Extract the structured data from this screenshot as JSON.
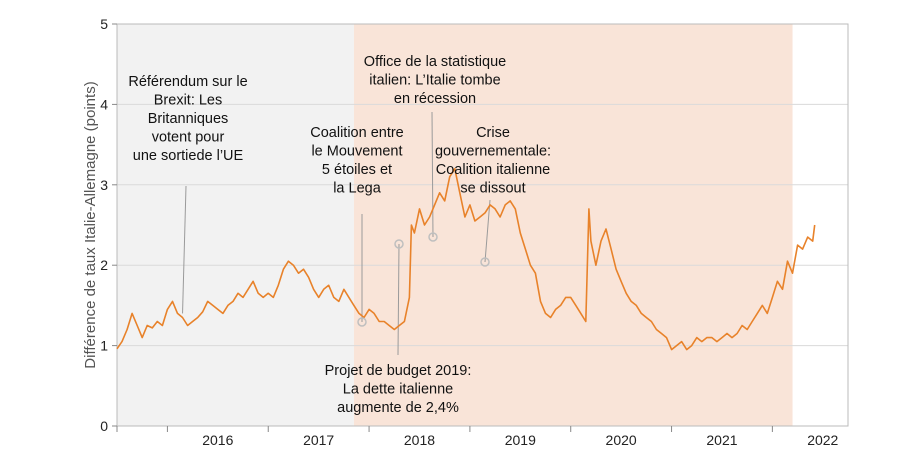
{
  "chart_data": {
    "type": "line",
    "ylabel": "Différence de taux Italie-Allemagne (points)",
    "ylim": [
      0,
      5
    ],
    "y_ticks": [
      "0",
      "1",
      "2",
      "3",
      "4",
      "5"
    ],
    "x_ticks": [
      "2016",
      "2017",
      "2018",
      "2019",
      "2020",
      "2021",
      "2022"
    ],
    "xlim": [
      2015.5,
      2022.75
    ],
    "grid": "horizontal",
    "colors": {
      "line": "#E8822A",
      "shade_grey": "#F2F2F2",
      "shade_orange": "#F9E4D8",
      "marker": "#BFBFBF"
    },
    "shaded_regions": [
      {
        "from": 2015.5,
        "to": 2017.85,
        "color": "grey"
      },
      {
        "from": 2017.85,
        "to": 2022.2,
        "color": "orange"
      }
    ],
    "series": [
      {
        "values": [
          [
            2015.5,
            0.96
          ],
          [
            2015.55,
            1.05
          ],
          [
            2015.6,
            1.2
          ],
          [
            2015.65,
            1.4
          ],
          [
            2015.7,
            1.25
          ],
          [
            2015.75,
            1.1
          ],
          [
            2015.8,
            1.25
          ],
          [
            2015.85,
            1.22
          ],
          [
            2015.9,
            1.3
          ],
          [
            2015.95,
            1.25
          ],
          [
            2016.0,
            1.45
          ],
          [
            2016.05,
            1.55
          ],
          [
            2016.1,
            1.4
          ],
          [
            2016.15,
            1.35
          ],
          [
            2016.2,
            1.25
          ],
          [
            2016.25,
            1.3
          ],
          [
            2016.3,
            1.35
          ],
          [
            2016.35,
            1.42
          ],
          [
            2016.4,
            1.55
          ],
          [
            2016.45,
            1.5
          ],
          [
            2016.5,
            1.45
          ],
          [
            2016.55,
            1.4
          ],
          [
            2016.6,
            1.5
          ],
          [
            2016.65,
            1.55
          ],
          [
            2016.7,
            1.65
          ],
          [
            2016.75,
            1.6
          ],
          [
            2016.8,
            1.7
          ],
          [
            2016.85,
            1.8
          ],
          [
            2016.9,
            1.65
          ],
          [
            2016.95,
            1.6
          ],
          [
            2017.0,
            1.65
          ],
          [
            2017.05,
            1.6
          ],
          [
            2017.1,
            1.75
          ],
          [
            2017.15,
            1.95
          ],
          [
            2017.2,
            2.05
          ],
          [
            2017.25,
            2.0
          ],
          [
            2017.3,
            1.9
          ],
          [
            2017.35,
            1.95
          ],
          [
            2017.4,
            1.85
          ],
          [
            2017.45,
            1.7
          ],
          [
            2017.5,
            1.6
          ],
          [
            2017.55,
            1.7
          ],
          [
            2017.6,
            1.75
          ],
          [
            2017.65,
            1.6
          ],
          [
            2017.7,
            1.55
          ],
          [
            2017.75,
            1.7
          ],
          [
            2017.8,
            1.6
          ],
          [
            2017.85,
            1.5
          ],
          [
            2017.9,
            1.4
          ],
          [
            2017.95,
            1.35
          ],
          [
            2018.0,
            1.45
          ],
          [
            2018.05,
            1.4
          ],
          [
            2018.1,
            1.3
          ],
          [
            2018.15,
            1.3
          ],
          [
            2018.2,
            1.25
          ],
          [
            2018.25,
            1.2
          ],
          [
            2018.3,
            1.25
          ],
          [
            2018.35,
            1.3
          ],
          [
            2018.4,
            1.6
          ],
          [
            2018.42,
            2.5
          ],
          [
            2018.45,
            2.4
          ],
          [
            2018.5,
            2.7
          ],
          [
            2018.55,
            2.5
          ],
          [
            2018.6,
            2.6
          ],
          [
            2018.65,
            2.75
          ],
          [
            2018.7,
            2.9
          ],
          [
            2018.75,
            2.8
          ],
          [
            2018.8,
            3.1
          ],
          [
            2018.85,
            3.2
          ],
          [
            2018.9,
            2.9
          ],
          [
            2018.95,
            2.6
          ],
          [
            2019.0,
            2.75
          ],
          [
            2019.05,
            2.55
          ],
          [
            2019.1,
            2.6
          ],
          [
            2019.15,
            2.65
          ],
          [
            2019.2,
            2.75
          ],
          [
            2019.25,
            2.7
          ],
          [
            2019.3,
            2.6
          ],
          [
            2019.35,
            2.75
          ],
          [
            2019.4,
            2.8
          ],
          [
            2019.45,
            2.7
          ],
          [
            2019.5,
            2.4
          ],
          [
            2019.55,
            2.2
          ],
          [
            2019.6,
            2.0
          ],
          [
            2019.65,
            1.9
          ],
          [
            2019.7,
            1.55
          ],
          [
            2019.75,
            1.4
          ],
          [
            2019.8,
            1.35
          ],
          [
            2019.85,
            1.45
          ],
          [
            2019.9,
            1.5
          ],
          [
            2019.95,
            1.6
          ],
          [
            2020.0,
            1.6
          ],
          [
            2020.05,
            1.5
          ],
          [
            2020.1,
            1.4
          ],
          [
            2020.15,
            1.3
          ],
          [
            2020.18,
            2.7
          ],
          [
            2020.2,
            2.3
          ],
          [
            2020.25,
            2.0
          ],
          [
            2020.3,
            2.3
          ],
          [
            2020.35,
            2.45
          ],
          [
            2020.4,
            2.2
          ],
          [
            2020.45,
            1.95
          ],
          [
            2020.5,
            1.8
          ],
          [
            2020.55,
            1.65
          ],
          [
            2020.6,
            1.55
          ],
          [
            2020.65,
            1.5
          ],
          [
            2020.7,
            1.4
          ],
          [
            2020.75,
            1.35
          ],
          [
            2020.8,
            1.3
          ],
          [
            2020.85,
            1.2
          ],
          [
            2020.9,
            1.15
          ],
          [
            2020.95,
            1.1
          ],
          [
            2021.0,
            0.95
          ],
          [
            2021.05,
            1.0
          ],
          [
            2021.1,
            1.05
          ],
          [
            2021.15,
            0.95
          ],
          [
            2021.2,
            1.0
          ],
          [
            2021.25,
            1.1
          ],
          [
            2021.3,
            1.05
          ],
          [
            2021.35,
            1.1
          ],
          [
            2021.4,
            1.1
          ],
          [
            2021.45,
            1.05
          ],
          [
            2021.5,
            1.1
          ],
          [
            2021.55,
            1.15
          ],
          [
            2021.6,
            1.1
          ],
          [
            2021.65,
            1.15
          ],
          [
            2021.7,
            1.25
          ],
          [
            2021.75,
            1.2
          ],
          [
            2021.8,
            1.3
          ],
          [
            2021.85,
            1.4
          ],
          [
            2021.9,
            1.5
          ],
          [
            2021.95,
            1.4
          ],
          [
            2022.0,
            1.6
          ],
          [
            2022.05,
            1.8
          ],
          [
            2022.1,
            1.7
          ],
          [
            2022.15,
            2.05
          ],
          [
            2022.2,
            1.9
          ],
          [
            2022.25,
            2.25
          ],
          [
            2022.3,
            2.2
          ],
          [
            2022.35,
            2.35
          ],
          [
            2022.4,
            2.3
          ],
          [
            2022.42,
            2.5
          ]
        ]
      }
    ],
    "annotations": [
      {
        "text": [
          "Référendum sur le",
          "Brexit: Les",
          "Britanniques",
          "votent pour",
          "une sortiede l’UE"
        ],
        "x": 2016.15,
        "y": 1.4
      },
      {
        "text": [
          "Coalition entre",
          "le Mouvement",
          "5 étoiles et",
          "la Lega"
        ],
        "x": 2018.38,
        "y": 1.3
      },
      {
        "text": [
          "Office de la statistique",
          "italien: L’Italie tombe",
          "en récession"
        ],
        "x": 2018.83,
        "y": 2.4
      },
      {
        "text": [
          "Crise",
          "gouvernementale:",
          "Coalition italienne",
          "se dissout"
        ],
        "x": 2019.57,
        "y": 2.03
      },
      {
        "text": [
          "Projet de budget 2019:",
          "La dette italienne",
          "augmente de 2,4%"
        ],
        "x": 2018.6,
        "y": 2.3
      }
    ]
  }
}
